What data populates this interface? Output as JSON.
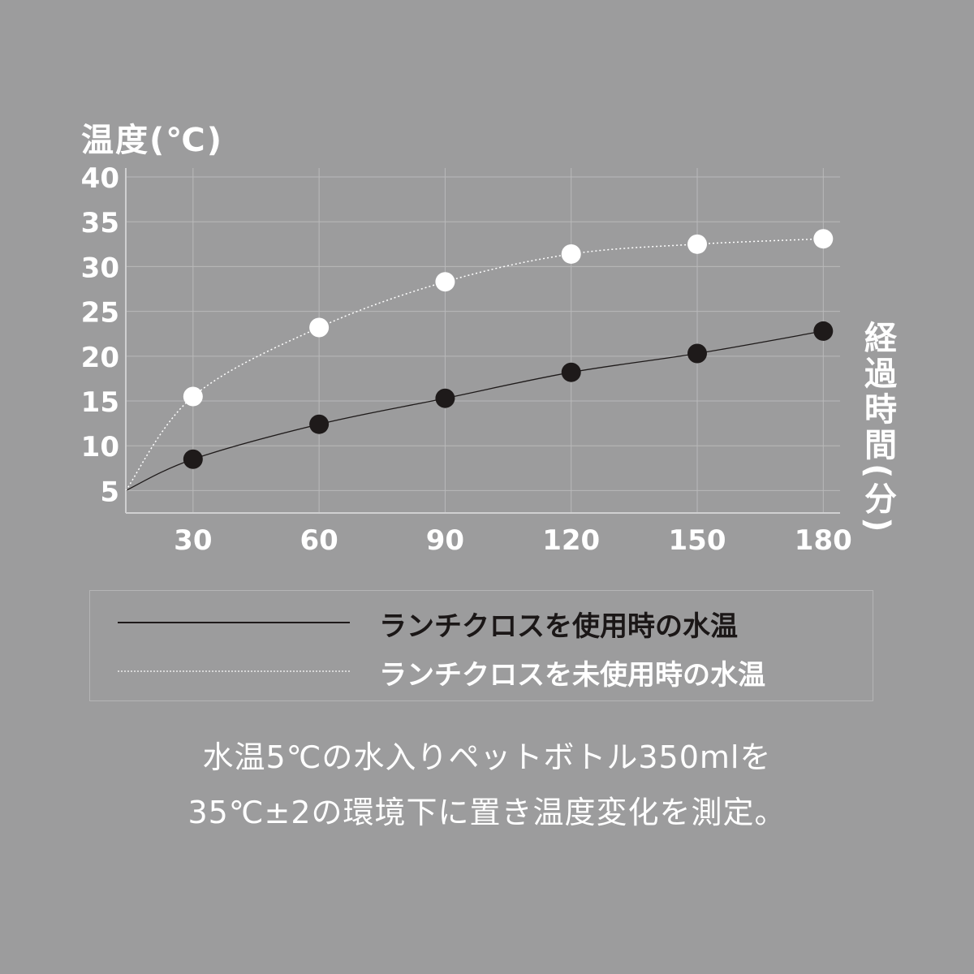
{
  "chart_data": {
    "type": "line",
    "ylabel": "温度(℃)",
    "xlabel": "経過時間(分)",
    "x_ticks": [
      "30",
      "60",
      "90",
      "120",
      "150",
      "180"
    ],
    "y_ticks": [
      "5",
      "10",
      "15",
      "20",
      "25",
      "30",
      "35",
      "40"
    ],
    "xlim": [
      14,
      184
    ],
    "ylim": [
      2.5,
      41
    ],
    "grid": true,
    "legend_position": "bottom",
    "series": [
      {
        "name": "ランチクロスを使用時の水温",
        "color": "#1e1a1a",
        "style": "solid",
        "x": [
          14,
          30,
          60,
          90,
          120,
          150,
          180
        ],
        "y": [
          5,
          8.5,
          12.4,
          15.3,
          18.2,
          20.3,
          22.8
        ],
        "marker_from_index": 1
      },
      {
        "name": "ランチクロスを未使用時の水温",
        "color": "#ffffff",
        "style": "dotted",
        "x": [
          14,
          30,
          60,
          90,
          120,
          150,
          180
        ],
        "y": [
          5,
          15.5,
          23.2,
          28.3,
          31.4,
          32.5,
          33.1
        ],
        "marker_from_index": 1
      }
    ]
  },
  "note": {
    "line1": "水温5℃の水入りペットボトル350mlを",
    "line2": "35℃±2の環境下に置き温度変化を測定。"
  }
}
